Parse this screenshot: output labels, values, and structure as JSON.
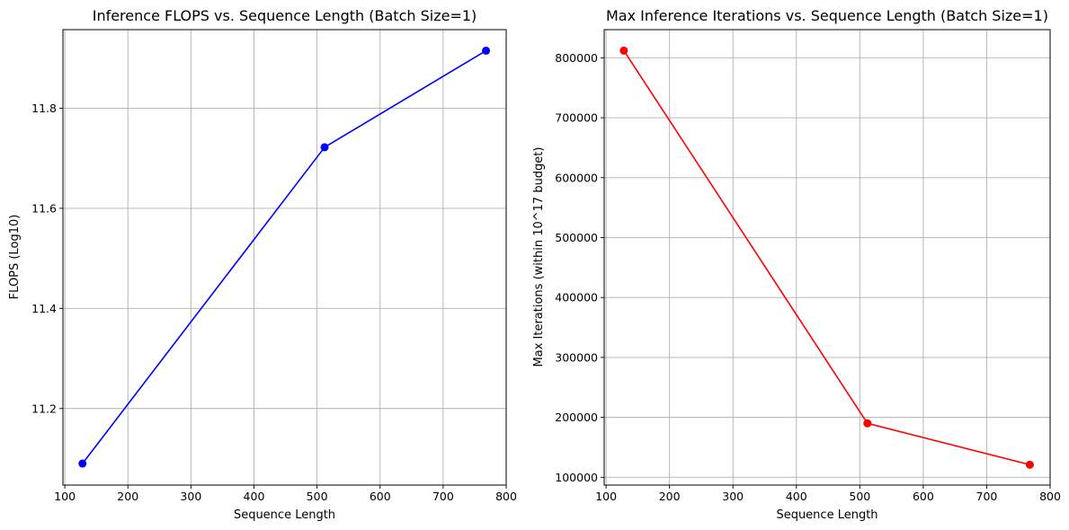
{
  "chart_data": [
    {
      "type": "line",
      "title": "Inference FLOPS vs. Sequence Length (Batch Size=1)",
      "xlabel": "Sequence Length",
      "ylabel": "FLOPS (Log10)",
      "xlim": [
        97,
        800
      ],
      "ylim": [
        11.047,
        11.957
      ],
      "xticks": [
        100,
        200,
        300,
        400,
        500,
        600,
        700,
        800
      ],
      "yticks": [
        11.2,
        11.4,
        11.6,
        11.8
      ],
      "ytick_labels": [
        "11.2",
        "11.4",
        "11.6",
        "11.8"
      ],
      "grid": true,
      "color": "#0000ff",
      "series": [
        {
          "x": [
            128,
            512,
            768
          ],
          "y": [
            11.09,
            11.722,
            11.915
          ]
        }
      ]
    },
    {
      "type": "line",
      "title": "Max Inference Iterations vs. Sequence Length (Batch Size=1)",
      "xlabel": "Sequence Length",
      "ylabel": "Max Iterations (within 10^17 budget)",
      "xlim": [
        97,
        800
      ],
      "ylim": [
        87000,
        847000
      ],
      "xticks": [
        100,
        200,
        300,
        400,
        500,
        600,
        700,
        800
      ],
      "yticks": [
        100000,
        200000,
        300000,
        400000,
        500000,
        600000,
        700000,
        800000
      ],
      "ytick_labels": [
        "100000",
        "200000",
        "300000",
        "400000",
        "500000",
        "600000",
        "700000",
        "800000"
      ],
      "grid": true,
      "color": "#ff0000",
      "series": [
        {
          "x": [
            128,
            512,
            768
          ],
          "y": [
            812000,
            190000,
            121000
          ]
        }
      ]
    }
  ]
}
